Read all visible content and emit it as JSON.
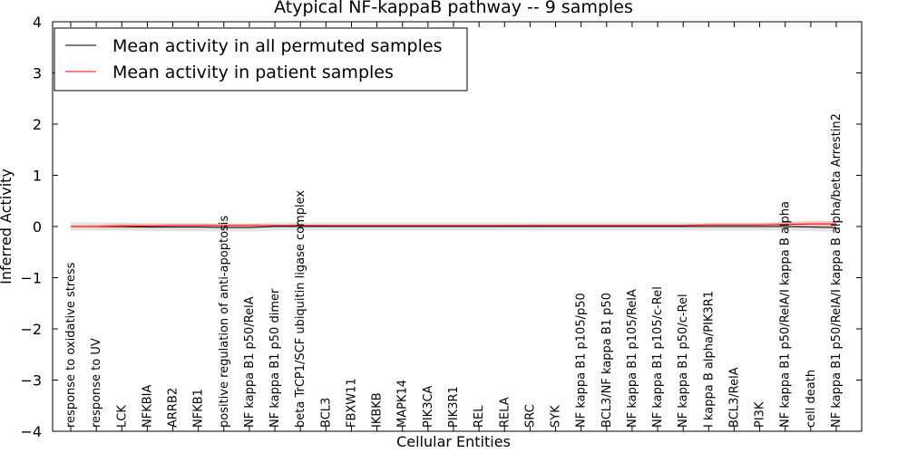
{
  "chart_data": {
    "type": "line",
    "title": "Atypical NF-kappaB pathway -- 9 samples",
    "xlabel": "Cellular Entities",
    "ylabel": "Inferred Activity",
    "ylim": [
      -4,
      4
    ],
    "yticks": [
      -4,
      -3,
      -2,
      -1,
      0,
      1,
      2,
      3,
      4
    ],
    "ytick_labels": [
      "−4",
      "−3",
      "−2",
      "−1",
      "0",
      "1",
      "2",
      "3",
      "4"
    ],
    "legend_position": "top-left",
    "grid": false,
    "categories": [
      "response to oxidative stress",
      "response to UV",
      "LCK",
      "NFKBIA",
      "ARRB2",
      "NFKB1",
      "positive regulation of anti-apoptosis",
      "NF kappa B1 p50/RelA",
      "NF kappa B1 p50 dimer",
      "beta TrCP1/SCF ubiquitin ligase complex",
      "BCL3",
      "FBXW11",
      "IKBKB",
      "MAPK14",
      "PIK3CA",
      "PIK3R1",
      "REL",
      "RELA",
      "SRC",
      "SYK",
      "NF kappa B1 p105/p50",
      "BCL3/NF kappa B1 p50",
      "NF kappa B1 p105/RelA",
      "NF kappa B1 p105/c-Rel",
      "NF kappa B1 p50/c-Rel",
      "I kappa B alpha/PIK3R1",
      "BCL3/RelA",
      "PI3K",
      "NF kappa B1 p50/RelA/I kappa B alpha",
      "cell death",
      "NF kappa B1 p50/RelA/I kappa B alpha/beta Arrestin2"
    ],
    "series": [
      {
        "name": "Mean activity in all permuted samples",
        "color": "#000000",
        "band_color": "#d9d9d9",
        "values": [
          0,
          0,
          0,
          -0.01,
          -0.01,
          -0.01,
          -0.02,
          -0.02,
          0,
          0,
          0,
          0,
          0,
          0,
          0,
          0,
          0,
          0,
          0,
          0,
          0,
          0,
          0,
          0,
          0,
          0,
          0,
          0,
          0,
          -0.01,
          -0.02
        ],
        "band": [
          0.08,
          0.08,
          0.08,
          0.08,
          0.08,
          0.08,
          0.08,
          0.08,
          0.08,
          0.08,
          0.08,
          0.08,
          0.08,
          0.08,
          0.08,
          0.08,
          0.08,
          0.08,
          0.08,
          0.08,
          0.08,
          0.08,
          0.08,
          0.08,
          0.08,
          0.08,
          0.08,
          0.08,
          0.08,
          0.08,
          0.08
        ]
      },
      {
        "name": "Mean activity in patient samples",
        "color": "#ff0000",
        "band_color": "#f4a3a3",
        "values": [
          0,
          0,
          0.01,
          0.01,
          0.02,
          0.02,
          0.02,
          0.02,
          0.02,
          0.02,
          0.02,
          0.02,
          0.02,
          0.02,
          0.02,
          0.02,
          0.02,
          0.02,
          0.02,
          0.02,
          0.02,
          0.02,
          0.02,
          0.02,
          0.02,
          0.03,
          0.03,
          0.03,
          0.04,
          0.05,
          0.05
        ],
        "band": [
          0.02,
          0.03,
          0.05,
          0.04,
          0.03,
          0.03,
          0.03,
          0.03,
          0.02,
          0.02,
          0.01,
          0.01,
          0.01,
          0.01,
          0.01,
          0.01,
          0.01,
          0.01,
          0.02,
          0.02,
          0.02,
          0.02,
          0.02,
          0.02,
          0.02,
          0.03,
          0.03,
          0.03,
          0.05,
          0.06,
          0.06
        ]
      }
    ]
  }
}
